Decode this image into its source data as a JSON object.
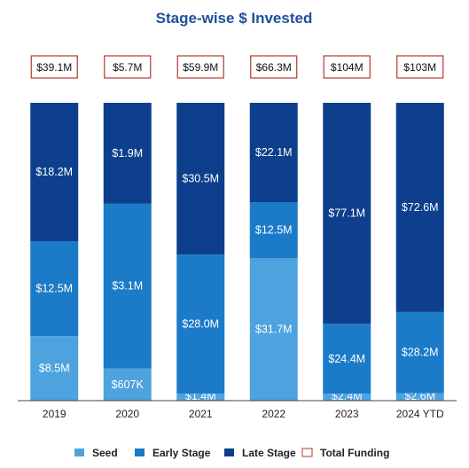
{
  "chart_data": {
    "type": "bar",
    "stacked": true,
    "title": "Stage-wise $ Invested",
    "categories": [
      "2019",
      "2020",
      "2021",
      "2022",
      "2023",
      "2024 YTD"
    ],
    "series": [
      {
        "name": "Seed",
        "color": "#4ea3de",
        "values": [
          8.5,
          0.607,
          1.4,
          31.7,
          2.4,
          2.6
        ],
        "labels": [
          "$8.5M",
          "$607K",
          "$1.4M",
          "$31.7M",
          "$2.4M",
          "$2.6M"
        ]
      },
      {
        "name": "Early Stage",
        "color": "#1c7bc8",
        "values": [
          12.5,
          3.1,
          28.0,
          12.5,
          24.4,
          28.2
        ],
        "labels": [
          "$12.5M",
          "$3.1M",
          "$28.0M",
          "$12.5M",
          "$24.4M",
          "$28.2M"
        ]
      },
      {
        "name": "Late Stage",
        "color": "#0d3f8c",
        "values": [
          18.2,
          1.9,
          30.5,
          22.1,
          77.1,
          72.6
        ],
        "labels": [
          "$18.2M",
          "$1.9M",
          "$30.5M",
          "$22.1M",
          "$77.1M",
          "$72.6M"
        ]
      }
    ],
    "totals": {
      "name": "Total Funding",
      "border_color": "#b03a2e",
      "values": [
        39.1,
        5.7,
        59.9,
        66.3,
        104,
        103
      ],
      "labels": [
        "$39.1M",
        "$5.7M",
        "$59.9M",
        "$66.3M",
        "$104M",
        "$103M"
      ]
    },
    "normalized": true,
    "legend_position": "bottom",
    "grid": false
  },
  "colors": {
    "title": "#1f4e9c"
  }
}
